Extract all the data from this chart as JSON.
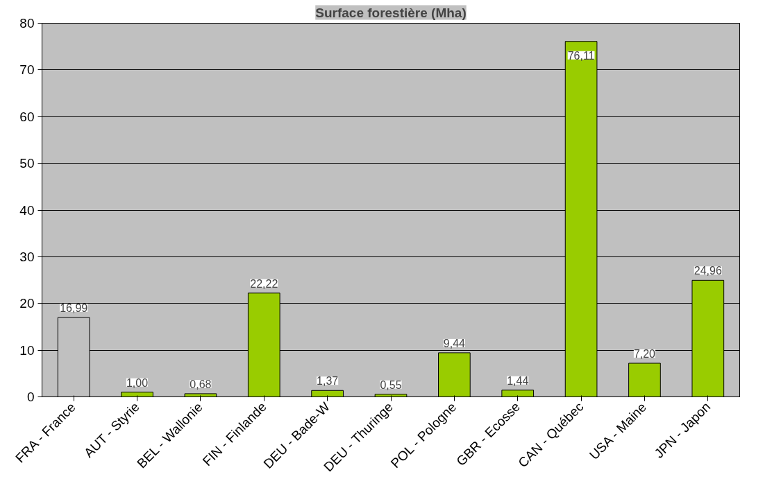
{
  "chart_data": {
    "type": "bar",
    "title": "Surface forestière (Mha)",
    "categories": [
      "FRA - France",
      "AUT - Styrie",
      "BEL - Wallonie",
      "FIN - Finlande",
      "DEU - Bade-W",
      "DEU - Thuringe",
      "POL - Pologne",
      "GBR - Ecosse",
      "CAN - Québec",
      "USA - Maine",
      "JPN - Japon"
    ],
    "values": [
      16.99,
      1.0,
      0.68,
      22.22,
      1.37,
      0.55,
      9.44,
      1.44,
      76.11,
      7.2,
      24.96
    ],
    "value_labels": [
      "16,99",
      "1,00",
      "0,68",
      "22,22",
      "1,37",
      "0,55",
      "9,44",
      "1,44",
      "76,11",
      "7,20",
      "24,96"
    ],
    "colors": [
      "#c0c0c0",
      "#99cc00",
      "#99cc00",
      "#99cc00",
      "#99cc00",
      "#99cc00",
      "#99cc00",
      "#99cc00",
      "#99cc00",
      "#99cc00",
      "#99cc00"
    ],
    "ylim": [
      0,
      80
    ],
    "yticks": [
      0,
      10,
      20,
      30,
      40,
      50,
      60,
      70,
      80
    ],
    "grid": "y"
  }
}
